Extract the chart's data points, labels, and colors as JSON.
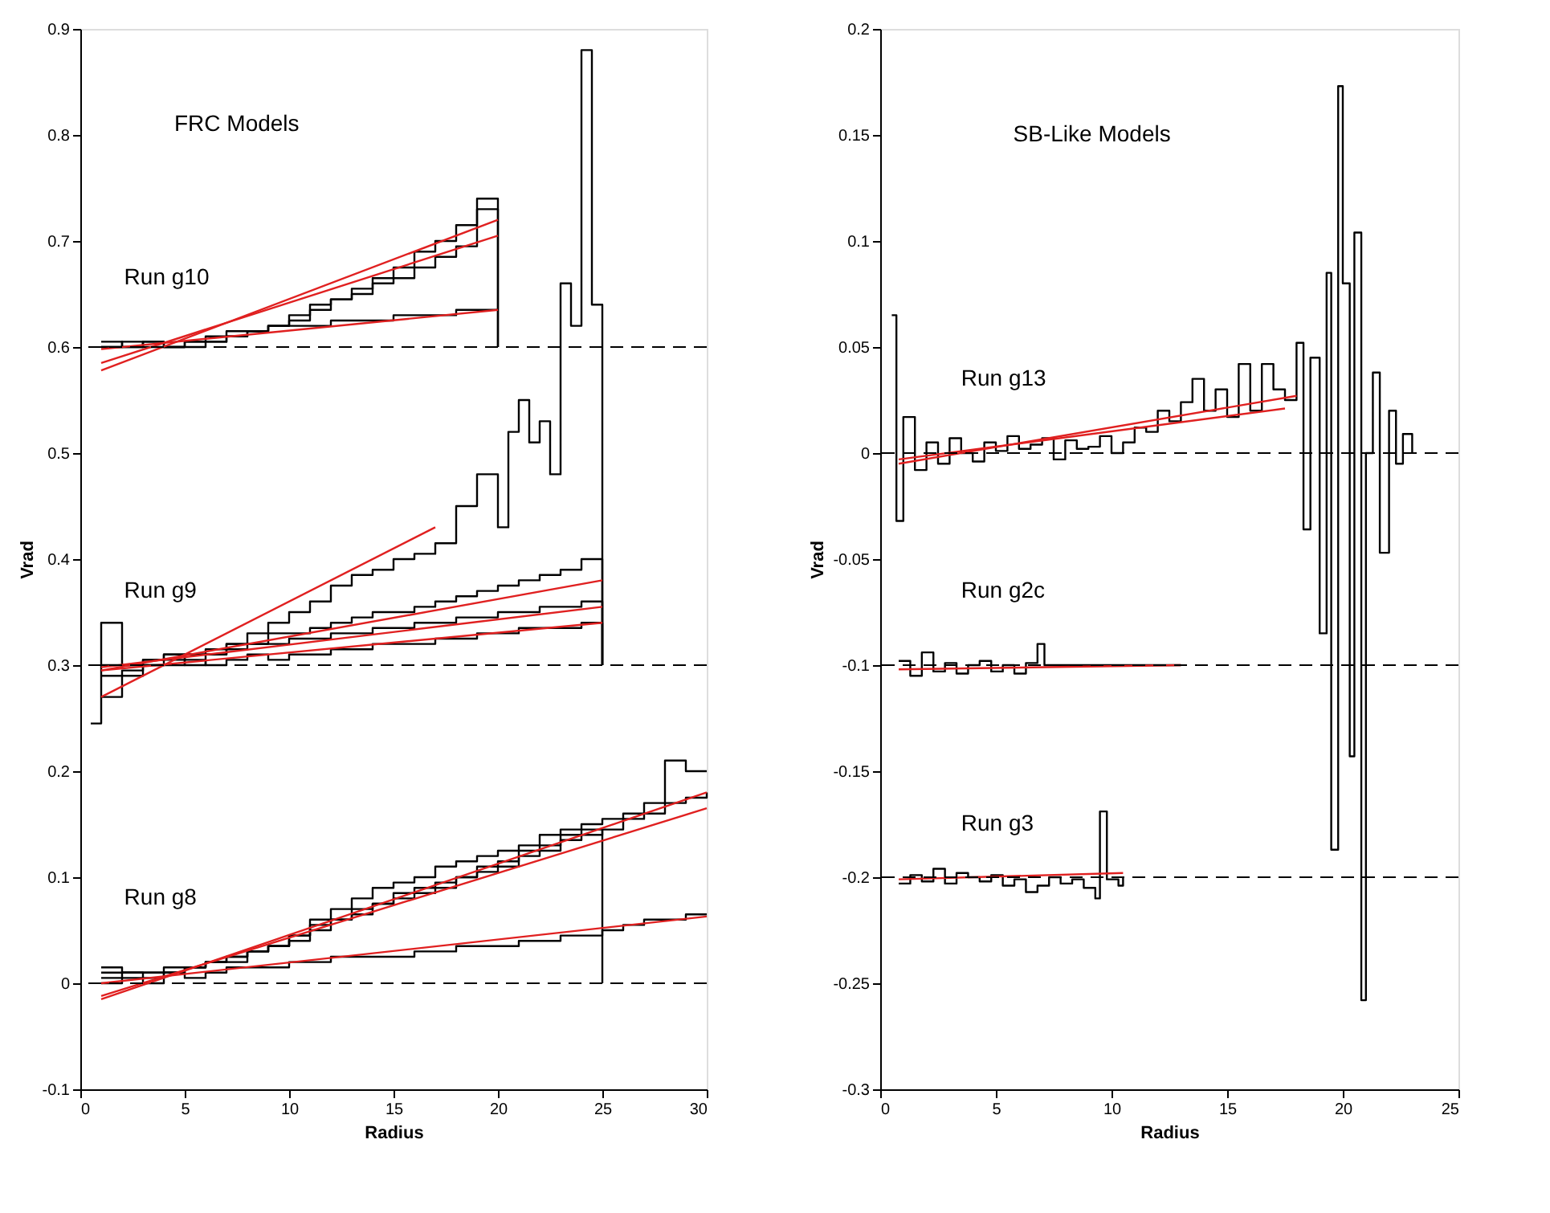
{
  "chart_data": [
    {
      "type": "step",
      "xlabel": "Radius",
      "ylabel": "Vrad",
      "xlim": [
        0,
        30
      ],
      "ylim": [
        -0.1,
        0.9
      ],
      "xticks": [
        0,
        5,
        10,
        15,
        20,
        25,
        30
      ],
      "yticks": [
        -0.1,
        0,
        0.1,
        0.2,
        0.3,
        0.4,
        0.5,
        0.6,
        0.7,
        0.8,
        0.9
      ],
      "grid": false,
      "series": [
        {
          "type": "step",
          "color": "#000000",
          "x": [
            1,
            2,
            3,
            4,
            5,
            6,
            7,
            8,
            9,
            10,
            11,
            12,
            13,
            14,
            15,
            16,
            17,
            18,
            19,
            20
          ],
          "values": [
            0.605,
            0.6,
            0.605,
            0.6,
            0.6,
            0.605,
            0.61,
            0.615,
            0.62,
            0.63,
            0.64,
            0.645,
            0.655,
            0.665,
            0.675,
            0.69,
            0.7,
            0.715,
            0.73,
            0.6
          ]
        },
        {
          "type": "step",
          "color": "#000000",
          "x": [
            1,
            2,
            3,
            4,
            5,
            6,
            7,
            8,
            9,
            10,
            11,
            12,
            13,
            14,
            15,
            16,
            17,
            18,
            19,
            20
          ],
          "values": [
            0.6,
            0.605,
            0.6,
            0.6,
            0.605,
            0.605,
            0.61,
            0.615,
            0.62,
            0.625,
            0.635,
            0.645,
            0.65,
            0.66,
            0.665,
            0.675,
            0.685,
            0.695,
            0.74,
            0.6
          ]
        },
        {
          "type": "step",
          "color": "#000000",
          "x": [
            1,
            2,
            3,
            4,
            5,
            6,
            7,
            8,
            9,
            10,
            11,
            12,
            13,
            14,
            15,
            16,
            17,
            18,
            19,
            20
          ],
          "values": [
            0.6,
            0.6,
            0.605,
            0.6,
            0.605,
            0.61,
            0.615,
            0.615,
            0.62,
            0.62,
            0.62,
            0.625,
            0.625,
            0.625,
            0.63,
            0.63,
            0.63,
            0.635,
            0.635,
            0.635
          ]
        },
        {
          "type": "step",
          "color": "#000000",
          "x": [
            0.5,
            1,
            2,
            3,
            4,
            5,
            6,
            7,
            8,
            9,
            10,
            11,
            12,
            13,
            14,
            15,
            16,
            17,
            18,
            19,
            20,
            20.5,
            21,
            21.5,
            22,
            22.5,
            23,
            23.5,
            24,
            24.5,
            25
          ],
          "values": [
            0.245,
            0.34,
            0.3,
            0.305,
            0.31,
            0.3,
            0.31,
            0.32,
            0.33,
            0.34,
            0.35,
            0.36,
            0.375,
            0.385,
            0.39,
            0.4,
            0.405,
            0.415,
            0.45,
            0.48,
            0.43,
            0.52,
            0.55,
            0.51,
            0.53,
            0.48,
            0.66,
            0.62,
            0.88,
            0.64,
            0.3
          ]
        },
        {
          "type": "step",
          "color": "#000000",
          "x": [
            1,
            2,
            3,
            4,
            5,
            6,
            7,
            8,
            9,
            10,
            11,
            12,
            13,
            14,
            15,
            16,
            17,
            18,
            19,
            20,
            21,
            22,
            23,
            24,
            25
          ],
          "values": [
            0.3,
            0.3,
            0.305,
            0.31,
            0.31,
            0.315,
            0.32,
            0.32,
            0.33,
            0.33,
            0.335,
            0.34,
            0.345,
            0.35,
            0.35,
            0.355,
            0.36,
            0.365,
            0.37,
            0.375,
            0.38,
            0.385,
            0.39,
            0.4,
            0.3
          ]
        },
        {
          "type": "step",
          "color": "#000000",
          "x": [
            1,
            2,
            3,
            4,
            5,
            6,
            7,
            8,
            9,
            10,
            11,
            12,
            13,
            14,
            15,
            16,
            17,
            18,
            19,
            20,
            21,
            22,
            23,
            24,
            25
          ],
          "values": [
            0.27,
            0.29,
            0.3,
            0.305,
            0.31,
            0.31,
            0.315,
            0.32,
            0.32,
            0.325,
            0.325,
            0.33,
            0.33,
            0.335,
            0.335,
            0.34,
            0.34,
            0.345,
            0.345,
            0.35,
            0.35,
            0.355,
            0.355,
            0.36,
            0.3
          ]
        },
        {
          "type": "step",
          "color": "#000000",
          "x": [
            1,
            2,
            3,
            4,
            5,
            6,
            7,
            8,
            9,
            10,
            11,
            12,
            13,
            14,
            15,
            16,
            17,
            18,
            19,
            20,
            21,
            22,
            23,
            24,
            25
          ],
          "values": [
            0.29,
            0.295,
            0.3,
            0.3,
            0.305,
            0.3,
            0.305,
            0.31,
            0.305,
            0.31,
            0.31,
            0.315,
            0.315,
            0.32,
            0.32,
            0.32,
            0.325,
            0.325,
            0.33,
            0.33,
            0.335,
            0.335,
            0.335,
            0.34,
            0.3
          ]
        },
        {
          "type": "step",
          "color": "#000000",
          "x": [
            1,
            2,
            3,
            4,
            5,
            6,
            7,
            8,
            9,
            10,
            11,
            12,
            13,
            14,
            15,
            16,
            17,
            18,
            19,
            20,
            21,
            22,
            23,
            24,
            25,
            26,
            27,
            28,
            29,
            30
          ],
          "values": [
            0.015,
            0.01,
            0.01,
            0.01,
            0.015,
            0.02,
            0.025,
            0.03,
            0.035,
            0.045,
            0.06,
            0.07,
            0.08,
            0.09,
            0.095,
            0.1,
            0.11,
            0.115,
            0.12,
            0.125,
            0.13,
            0.14,
            0.145,
            0.15,
            0.155,
            0.16,
            0.17,
            0.21,
            0.2,
            0.2
          ]
        },
        {
          "type": "step",
          "color": "#000000",
          "x": [
            1,
            2,
            3,
            4,
            5,
            6,
            7,
            8,
            9,
            10,
            11,
            12,
            13,
            14,
            15,
            16,
            17,
            18,
            19,
            20,
            21,
            22,
            23,
            24,
            25,
            26,
            27,
            28,
            29,
            30
          ],
          "values": [
            0,
            0.005,
            0.005,
            0.01,
            0.015,
            0.02,
            0.025,
            0.03,
            0.035,
            0.04,
            0.05,
            0.06,
            0.065,
            0.075,
            0.08,
            0.085,
            0.09,
            0.1,
            0.105,
            0.11,
            0.12,
            0.125,
            0.135,
            0.14,
            0.145,
            0.155,
            0.16,
            0.17,
            0.175,
            0.18
          ]
        },
        {
          "type": "step",
          "color": "#000000",
          "x": [
            1,
            2,
            3,
            4,
            5,
            6,
            7,
            8,
            9,
            10,
            11,
            12,
            13,
            14,
            15,
            16,
            17,
            18,
            19,
            20,
            21,
            22,
            23,
            24,
            25
          ],
          "values": [
            0.01,
            0.01,
            0.01,
            0.015,
            0.015,
            0.02,
            0.02,
            0.03,
            0.035,
            0.045,
            0.055,
            0.06,
            0.07,
            0.075,
            0.085,
            0.09,
            0.095,
            0.1,
            0.11,
            0.115,
            0.125,
            0.13,
            0.14,
            0.145,
            0
          ]
        },
        {
          "type": "step",
          "color": "#000000",
          "x": [
            1,
            2,
            3,
            4,
            5,
            6,
            7,
            8,
            9,
            10,
            11,
            12,
            13,
            14,
            15,
            16,
            17,
            18,
            19,
            20,
            21,
            22,
            23,
            24,
            25,
            26,
            27,
            28,
            29,
            30
          ],
          "values": [
            0.005,
            0.01,
            0,
            0.01,
            0.005,
            0.01,
            0.015,
            0.015,
            0.015,
            0.02,
            0.02,
            0.025,
            0.025,
            0.025,
            0.025,
            0.03,
            0.03,
            0.035,
            0.035,
            0.035,
            0.04,
            0.04,
            0.045,
            0.045,
            0.05,
            0.055,
            0.06,
            0.06,
            0.065,
            0.065
          ]
        },
        {
          "type": "line",
          "color": "#e02020",
          "x": [
            1,
            20
          ],
          "values": [
            0.578,
            0.72
          ]
        },
        {
          "type": "line",
          "color": "#e02020",
          "x": [
            1,
            20
          ],
          "values": [
            0.585,
            0.705
          ]
        },
        {
          "type": "line",
          "color": "#e02020",
          "x": [
            1,
            20
          ],
          "values": [
            0.598,
            0.635
          ]
        },
        {
          "type": "line",
          "color": "#e02020",
          "x": [
            1,
            17
          ],
          "values": [
            0.27,
            0.43
          ]
        },
        {
          "type": "line",
          "color": "#e02020",
          "x": [
            1,
            25
          ],
          "values": [
            0.295,
            0.38
          ]
        },
        {
          "type": "line",
          "color": "#e02020",
          "x": [
            1,
            25
          ],
          "values": [
            0.298,
            0.355
          ]
        },
        {
          "type": "line",
          "color": "#e02020",
          "x": [
            1,
            25
          ],
          "values": [
            0.295,
            0.34
          ]
        },
        {
          "type": "line",
          "color": "#e02020",
          "x": [
            1,
            30
          ],
          "values": [
            -0.015,
            0.18
          ]
        },
        {
          "type": "line",
          "color": "#e02020",
          "x": [
            1,
            30
          ],
          "values": [
            -0.012,
            0.165
          ]
        },
        {
          "type": "line",
          "color": "#e02020",
          "x": [
            1,
            30
          ],
          "values": [
            0,
            0.063
          ]
        }
      ],
      "ref_lines": [
        {
          "axis": "y",
          "value": 0.6,
          "color": "#000000",
          "line_style": "dashed"
        },
        {
          "axis": "y",
          "value": 0.3,
          "color": "#000000",
          "line_style": "dashed"
        },
        {
          "axis": "y",
          "value": 0,
          "color": "#000000",
          "line_style": "dashed"
        }
      ],
      "annotations": [
        "FRC Models",
        "Run g10",
        "Run g9",
        "Run g8"
      ]
    },
    {
      "type": "step",
      "xlabel": "Radius",
      "ylabel": "Vrad",
      "xlim": [
        0,
        25
      ],
      "ylim": [
        -0.3,
        0.2
      ],
      "xticks": [
        0,
        5,
        10,
        15,
        20,
        25
      ],
      "yticks": [
        -0.3,
        -0.25,
        -0.2,
        -0.15,
        -0.1,
        -0.05,
        0,
        0.05,
        0.1,
        0.15,
        0.2
      ],
      "grid": false,
      "series": [
        {
          "type": "step",
          "color": "#000000",
          "x": [
            0.5,
            0.7,
            1,
            1.5,
            2,
            2.5,
            3,
            3.5,
            4,
            4.5,
            5,
            5.5,
            6,
            6.5,
            7,
            7.5,
            8,
            8.5,
            9,
            9.5,
            10,
            10.5,
            11,
            11.5,
            12,
            12.5,
            13,
            13.5,
            14,
            14.5,
            15,
            15.5,
            16,
            16.5,
            17,
            17.5,
            18,
            18.3,
            18.6,
            19,
            19.3,
            19.5,
            19.8,
            20,
            20.3,
            20.5,
            20.8,
            21,
            21.3,
            21.6,
            22,
            22.3,
            22.6,
            23
          ],
          "values": [
            0.065,
            -0.032,
            0.017,
            -0.008,
            0.005,
            -0.005,
            0.007,
            0,
            -0.004,
            0.005,
            0.001,
            0.008,
            0.002,
            0.004,
            0.007,
            -0.003,
            0.006,
            0.002,
            0.003,
            0.008,
            0,
            0.005,
            0.012,
            0.01,
            0.02,
            0.015,
            0.024,
            0.035,
            0.02,
            0.03,
            0.017,
            0.042,
            0.02,
            0.042,
            0.03,
            0.025,
            0.052,
            -0.036,
            0.045,
            -0.085,
            0.085,
            -0.187,
            0.173,
            0.08,
            -0.143,
            0.104,
            -0.258,
            0,
            0.038,
            -0.047,
            0.02,
            -0.005,
            0.009,
            0
          ]
        },
        {
          "type": "step",
          "color": "#000000",
          "x": [
            0.8,
            1.3,
            1.8,
            2.3,
            2.8,
            3.3,
            3.8,
            4.3,
            4.8,
            5.3,
            5.8,
            6.3,
            6.8,
            7.1,
            7.5,
            13
          ],
          "values": [
            -0.098,
            -0.105,
            -0.094,
            -0.103,
            -0.099,
            -0.104,
            -0.1,
            -0.098,
            -0.103,
            -0.1,
            -0.104,
            -0.099,
            -0.09,
            -0.1,
            -0.1,
            -0.1
          ]
        },
        {
          "type": "step",
          "color": "#000000",
          "x": [
            0.8,
            1.3,
            1.8,
            2.3,
            2.8,
            3.3,
            3.8,
            4.3,
            4.8,
            5.3,
            5.8,
            6.3,
            6.8,
            7.3,
            7.8,
            8.3,
            8.8,
            9.3,
            9.5,
            9.8,
            10.3,
            10.5
          ],
          "values": [
            -0.203,
            -0.199,
            -0.202,
            -0.196,
            -0.203,
            -0.198,
            -0.2,
            -0.202,
            -0.199,
            -0.204,
            -0.201,
            -0.207,
            -0.204,
            -0.2,
            -0.203,
            -0.201,
            -0.205,
            -0.21,
            -0.169,
            -0.201,
            -0.204,
            -0.2
          ]
        },
        {
          "type": "line",
          "color": "#e02020",
          "x": [
            0.8,
            18
          ],
          "values": [
            -0.005,
            0.027
          ]
        },
        {
          "type": "line",
          "color": "#e02020",
          "x": [
            0.8,
            17.5
          ],
          "values": [
            -0.003,
            0.021
          ]
        },
        {
          "type": "line",
          "color": "#e02020",
          "x": [
            0.8,
            13
          ],
          "values": [
            -0.102,
            -0.1
          ]
        },
        {
          "type": "line",
          "color": "#e02020",
          "x": [
            0.8,
            10.5
          ],
          "values": [
            -0.201,
            -0.198
          ]
        }
      ],
      "ref_lines": [
        {
          "axis": "y",
          "value": 0,
          "color": "#000000",
          "line_style": "dashed"
        },
        {
          "axis": "y",
          "value": -0.1,
          "color": "#000000",
          "line_style": "dashed"
        },
        {
          "axis": "y",
          "value": -0.2,
          "color": "#000000",
          "line_style": "dashed"
        }
      ],
      "annotations": [
        "SB-Like Models",
        "Run g13",
        "Run g2c",
        "Run g3"
      ]
    }
  ]
}
